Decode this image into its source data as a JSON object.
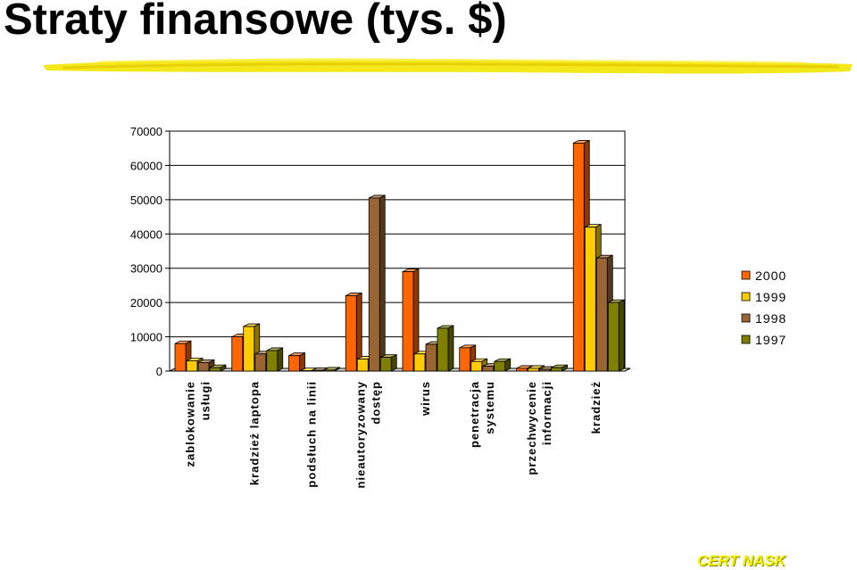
{
  "slide": {
    "title": "Straty finansowe (tys. $)",
    "footer": "CERT NASK"
  },
  "colors": {
    "title_underline": "#f2e600",
    "footer": "#f4f400"
  },
  "chart_data": {
    "type": "bar",
    "title": "",
    "xlabel": "",
    "ylabel": "",
    "ylim": [
      0,
      70000
    ],
    "yticks": [
      0,
      10000,
      20000,
      30000,
      40000,
      50000,
      60000,
      70000
    ],
    "grid": true,
    "three_d": true,
    "legend_position": "right",
    "categories": [
      [
        "zablokowanie",
        "usługi"
      ],
      [
        "kradzież laptopa"
      ],
      [
        "podsłuch na linii"
      ],
      [
        "nieautoryzowany",
        "dostęp"
      ],
      [
        "wirus"
      ],
      [
        "penetracja",
        "systemu"
      ],
      [
        "przechwycenie",
        "informacji"
      ],
      [
        "kradzież"
      ]
    ],
    "series": [
      {
        "name": "2000",
        "color": "#ff6600",
        "values": [
          8000,
          10000,
          4500,
          22000,
          29000,
          6800,
          800,
          66500
        ]
      },
      {
        "name": "1999",
        "color": "#ffcc00",
        "values": [
          3000,
          13000,
          100,
          3500,
          5000,
          2800,
          800,
          42000
        ]
      },
      {
        "name": "1998",
        "color": "#996633",
        "values": [
          2500,
          5000,
          200,
          50500,
          7800,
          1400,
          500,
          33000
        ]
      },
      {
        "name": "1997",
        "color": "#808000",
        "values": [
          1000,
          6000,
          300,
          4000,
          12500,
          2800,
          1000,
          20000
        ]
      }
    ]
  }
}
